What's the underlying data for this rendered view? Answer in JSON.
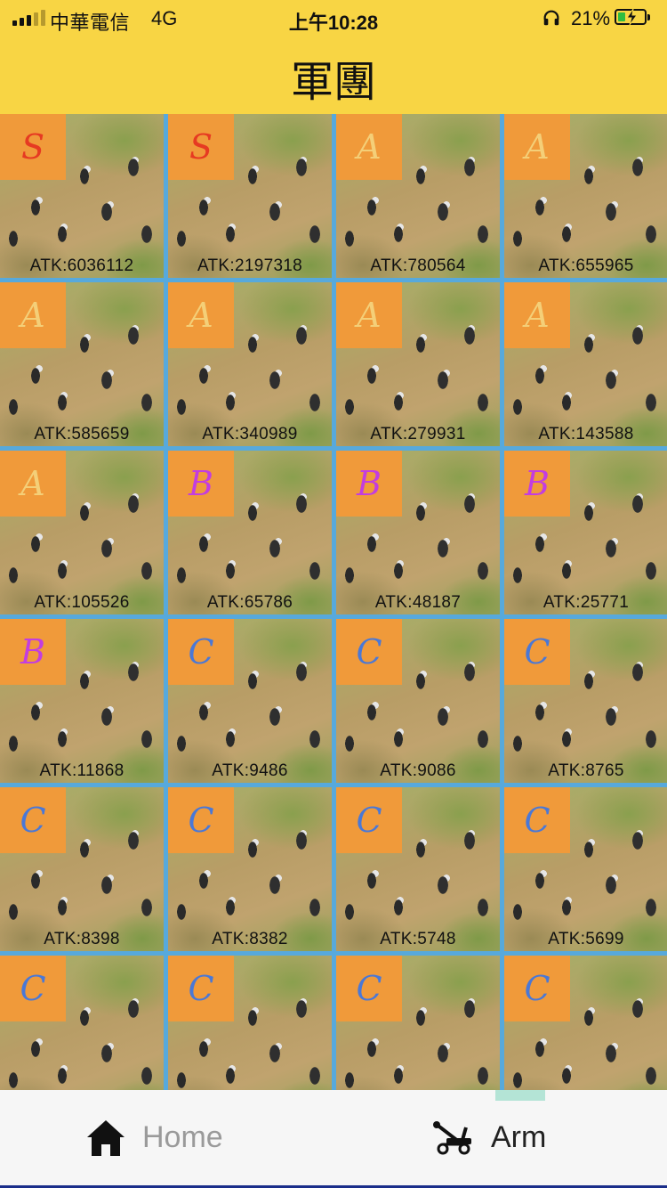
{
  "status_bar": {
    "carrier": "中華電信",
    "network": "4G",
    "time": "上午10:28",
    "battery": "21%",
    "battery_level": 0.21
  },
  "header": {
    "title": "軍團"
  },
  "units": [
    {
      "rank": "S",
      "atk": "ATK:6036112"
    },
    {
      "rank": "S",
      "atk": "ATK:2197318"
    },
    {
      "rank": "A",
      "atk": "ATK:780564"
    },
    {
      "rank": "A",
      "atk": "ATK:655965"
    },
    {
      "rank": "A",
      "atk": "ATK:585659"
    },
    {
      "rank": "A",
      "atk": "ATK:340989"
    },
    {
      "rank": "A",
      "atk": "ATK:279931"
    },
    {
      "rank": "A",
      "atk": "ATK:143588"
    },
    {
      "rank": "A",
      "atk": "ATK:105526"
    },
    {
      "rank": "B",
      "atk": "ATK:65786"
    },
    {
      "rank": "B",
      "atk": "ATK:48187"
    },
    {
      "rank": "B",
      "atk": "ATK:25771"
    },
    {
      "rank": "B",
      "atk": "ATK:11868"
    },
    {
      "rank": "C",
      "atk": "ATK:9486"
    },
    {
      "rank": "C",
      "atk": "ATK:9086"
    },
    {
      "rank": "C",
      "atk": "ATK:8765"
    },
    {
      "rank": "C",
      "atk": "ATK:8398"
    },
    {
      "rank": "C",
      "atk": "ATK:8382"
    },
    {
      "rank": "C",
      "atk": "ATK:5748"
    },
    {
      "rank": "C",
      "atk": "ATK:5699"
    },
    {
      "rank": "C",
      "atk": ""
    },
    {
      "rank": "C",
      "atk": ""
    },
    {
      "rank": "C",
      "atk": ""
    },
    {
      "rank": "C",
      "atk": ""
    }
  ],
  "tabs": {
    "home": {
      "label": "Home",
      "icon": "home-icon"
    },
    "arm": {
      "label": "Arm",
      "icon": "catapult-icon",
      "selected": true
    }
  },
  "colors": {
    "header": "#f8d544",
    "grid_lines": "#57a9dc",
    "rank_badge": "#f09a3a",
    "rank_S": "#e63a22",
    "rank_A": "#f4cf78",
    "rank_B": "#c33de0",
    "rank_C": "#4a78d6",
    "tab_indicator": "#b4e4d6"
  }
}
